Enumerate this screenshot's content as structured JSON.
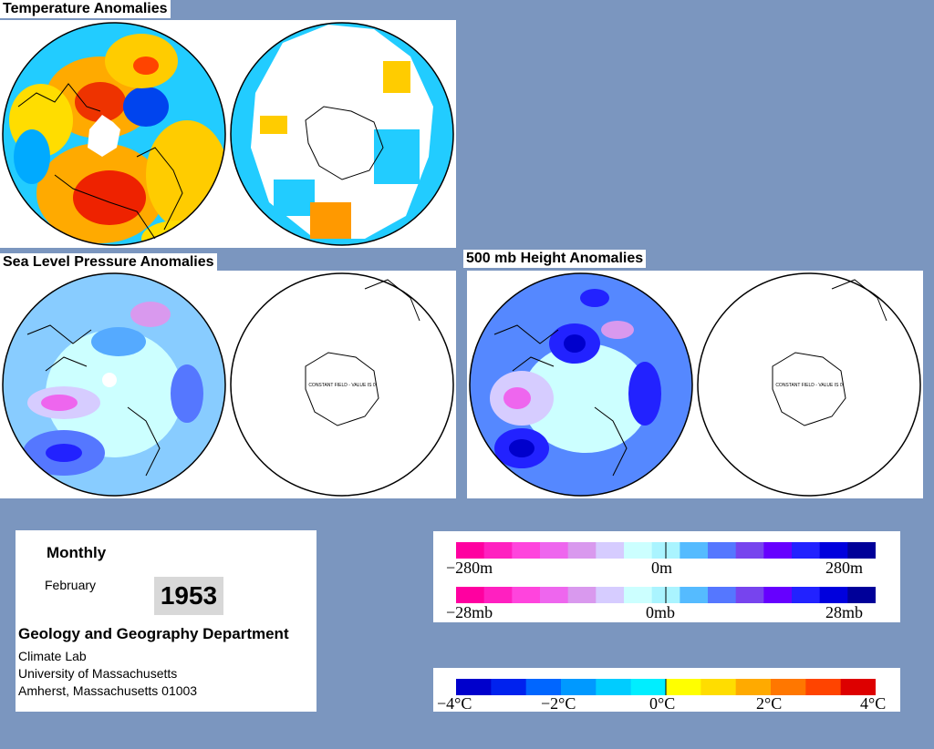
{
  "titles": {
    "temperature": "Temperature Anomalies",
    "slp": "Sea Level Pressure Anomalies",
    "height500": "500 mb Height Anomalies"
  },
  "maps": {
    "constant_field_label": "CONSTANT FIELD - VALUE IS 0"
  },
  "info": {
    "period": "Monthly",
    "month": "February",
    "year": "1953",
    "department": "Geology and Geography Department",
    "lab": "Climate Lab",
    "university": "University of Massachusetts",
    "address": "Amherst, Massachusetts 01003"
  },
  "scales": {
    "height_ticks": [
      "−280m",
      "0m",
      "280m"
    ],
    "pressure_ticks": [
      "−28mb",
      "0mb",
      "28mb"
    ],
    "temperature_ticks": [
      "−4°C",
      "−2°C",
      "0°C",
      "2°C",
      "4°C"
    ],
    "pressure_colors": [
      "#ff00a0",
      "#ff20c0",
      "#ff44dd",
      "#ee66ee",
      "#d999ee",
      "#d6ccff",
      "#ccffff",
      "#aaf4ff",
      "#55bbff",
      "#5577ff",
      "#7744ee",
      "#6600ff",
      "#2222ff",
      "#0000dd",
      "#000099"
    ],
    "temperature_colors": [
      "#0000cc",
      "#0022ee",
      "#0066ff",
      "#0099ff",
      "#00ccff",
      "#00eeff",
      "#ffff00",
      "#ffdd00",
      "#ffaa00",
      "#ff7700",
      "#ff4400",
      "#dd0000"
    ]
  }
}
